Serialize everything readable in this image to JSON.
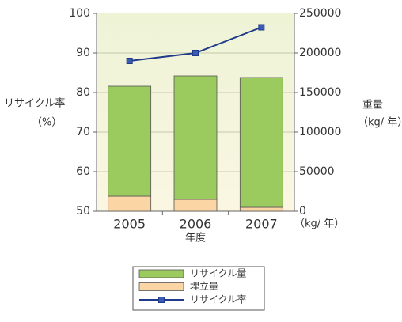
{
  "chart_data": {
    "type": "bar",
    "categories": [
      "2005",
      "2006",
      "2007"
    ],
    "x_label": "年度",
    "y_label": [
      "リサイクル率",
      "（%）"
    ],
    "y2_label": [
      "重量",
      "（kg/ 年）"
    ],
    "y2_unit": "（kg/ 年）",
    "ylim": [
      50,
      100
    ],
    "yticks": [
      50,
      60,
      70,
      80,
      90,
      100
    ],
    "y2lim": [
      0,
      250000
    ],
    "y2ticks": [
      0,
      50000,
      100000,
      150000,
      200000,
      250000
    ],
    "grid": true,
    "stacked": true,
    "legend": "bottom",
    "series": [
      {
        "name": "リサイクル量",
        "type": "bar",
        "axis": "y2",
        "color": "#9bcb5e",
        "values": [
          139000,
          156000,
          164000
        ]
      },
      {
        "name": "埋立量",
        "type": "bar",
        "axis": "y2",
        "color": "#fbd5a4",
        "values": [
          19000,
          15000,
          5000
        ]
      },
      {
        "name": "リサイクル率",
        "type": "line",
        "axis": "y",
        "color": "#1f3a8a",
        "values": [
          88,
          90,
          96.5
        ]
      }
    ]
  }
}
